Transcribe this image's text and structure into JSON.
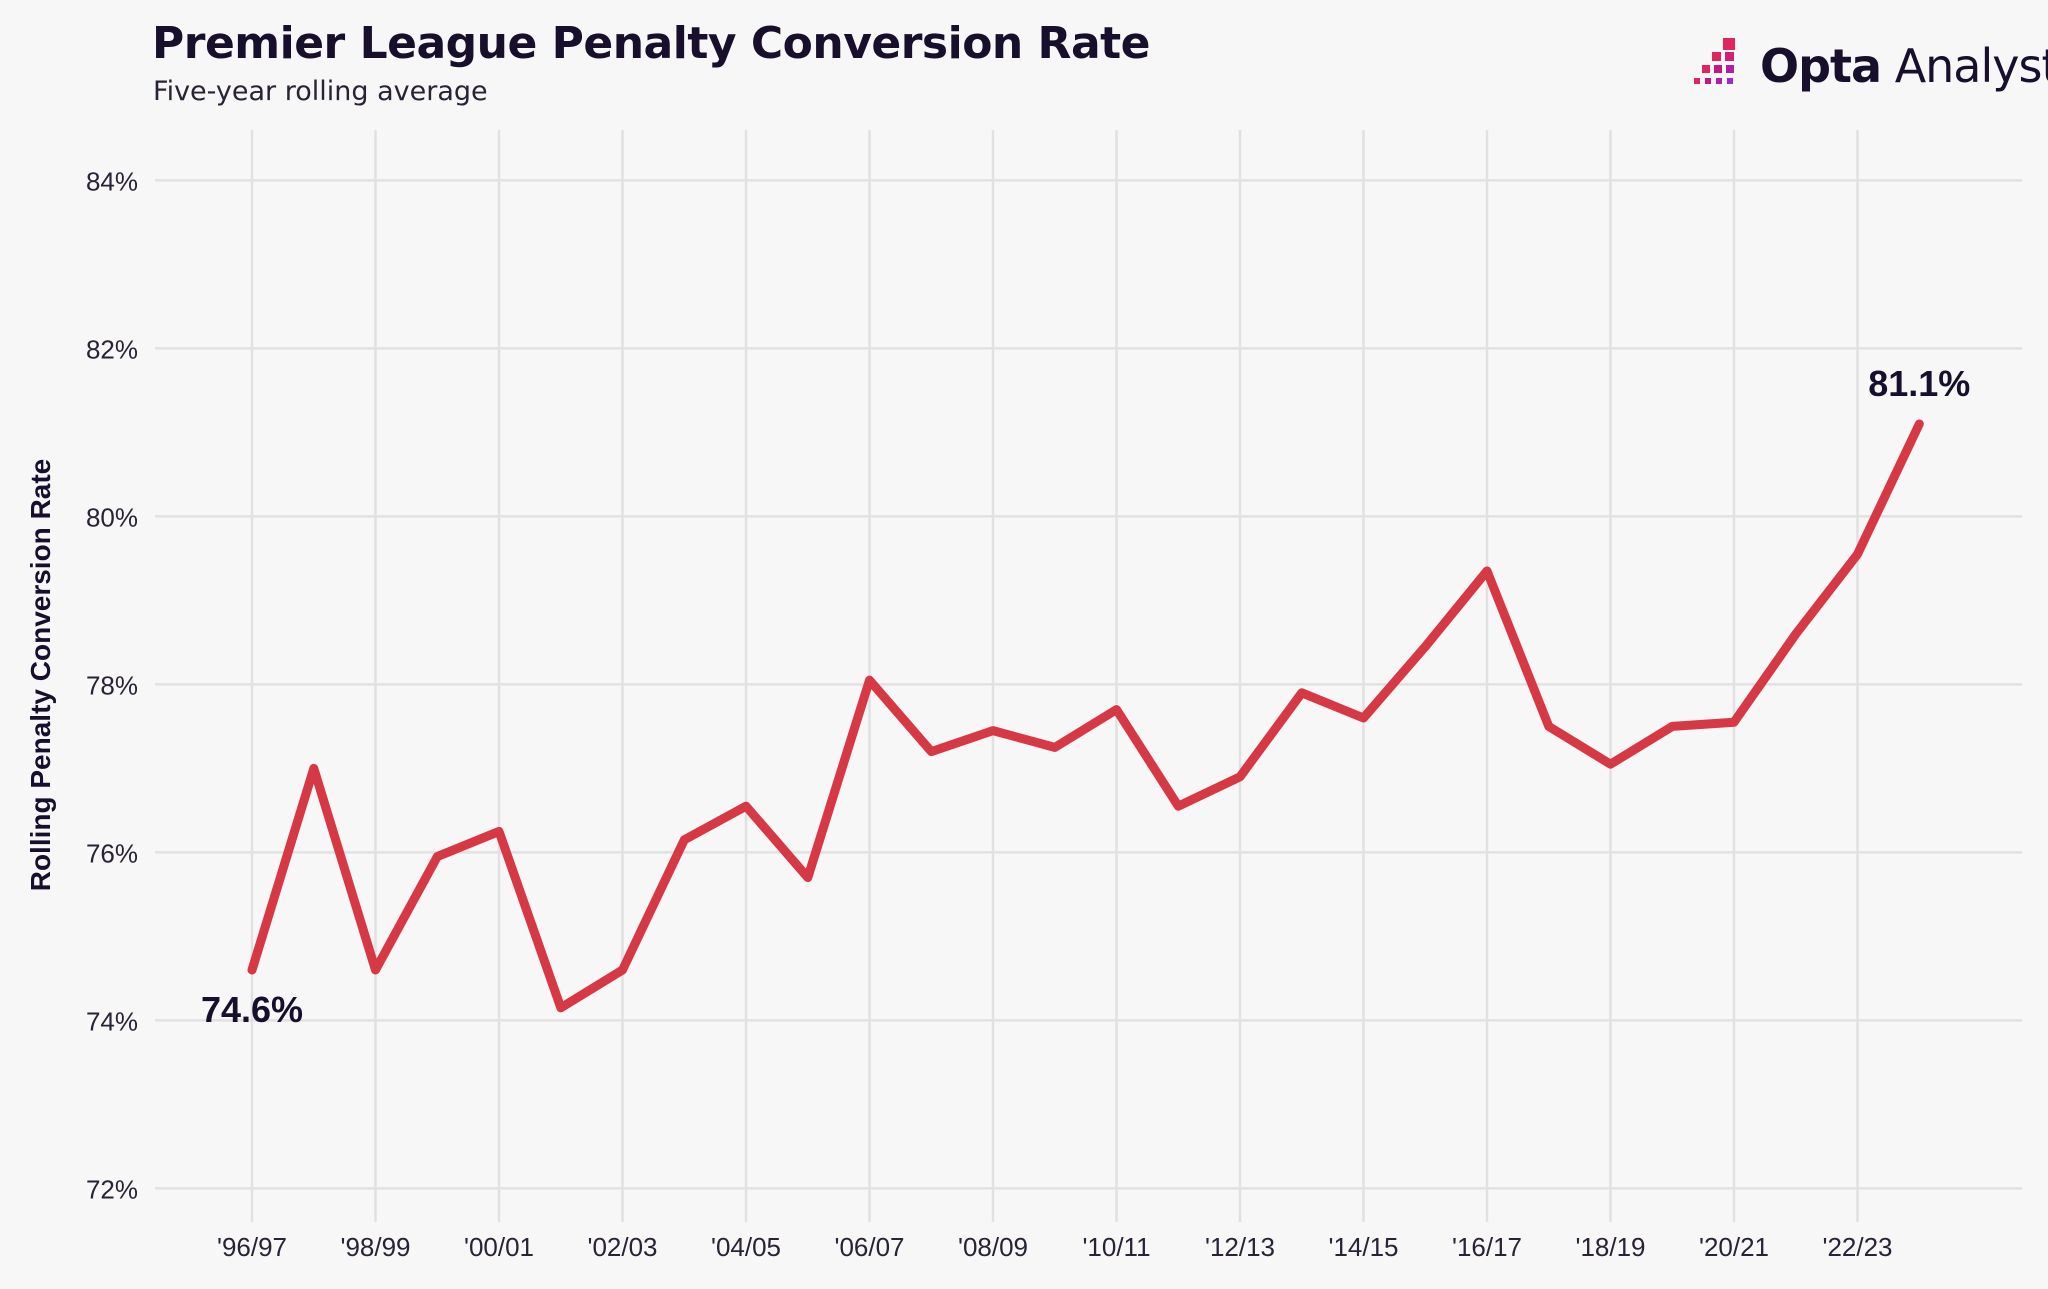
{
  "header": {
    "title": "Premier League Penalty Conversion Rate",
    "subtitle": "Five-year rolling average"
  },
  "brand": {
    "name_strong": "Opta",
    "name_light": "Analyst",
    "logo_colors": [
      "#e0245e",
      "#c2178a",
      "#9b2bd1"
    ]
  },
  "colors": {
    "line": "#d63844",
    "grid": "#e1e1e3",
    "text": "#170f2b"
  },
  "chart_data": {
    "type": "line",
    "title": "Premier League Penalty Conversion Rate",
    "subtitle": "Five-year rolling average",
    "xlabel": "",
    "ylabel": "Rolling Penalty Conversion Rate",
    "ylim": [
      71.6,
      84.6
    ],
    "yticks": [
      72,
      74,
      76,
      78,
      80,
      82,
      84
    ],
    "ytick_labels": [
      "72%",
      "74%",
      "76%",
      "78%",
      "80%",
      "82%",
      "84%"
    ],
    "xticks": [
      "'96/97",
      "'98/99",
      "'00/01",
      "'02/03",
      "'04/05",
      "'06/07",
      "'08/09",
      "'10/11",
      "'12/13",
      "'14/15",
      "'16/17",
      "'18/19",
      "'20/21",
      "'22/23"
    ],
    "grid": true,
    "legend": "none",
    "series": [
      {
        "name": "Rolling penalty conversion rate",
        "x": [
          "'96/97",
          "'97/98",
          "'98/99",
          "'99/00",
          "'00/01",
          "'01/02",
          "'02/03",
          "'03/04",
          "'04/05",
          "'05/06",
          "'06/07",
          "'07/08",
          "'08/09",
          "'09/10",
          "'10/11",
          "'11/12",
          "'12/13",
          "'13/14",
          "'14/15",
          "'15/16",
          "'16/17",
          "'17/18",
          "'18/19",
          "'19/20",
          "'20/21",
          "'21/22",
          "'22/23",
          "'23/24"
        ],
        "values": [
          74.6,
          77.0,
          74.6,
          75.95,
          76.25,
          74.15,
          74.6,
          76.15,
          76.55,
          75.7,
          78.05,
          77.2,
          77.45,
          77.25,
          77.7,
          76.55,
          76.9,
          77.9,
          77.6,
          78.45,
          79.35,
          77.5,
          77.05,
          77.5,
          77.55,
          78.6,
          79.55,
          81.1
        ]
      }
    ],
    "annotations": [
      {
        "label": "74.6%",
        "point_index": 0
      },
      {
        "label": "81.1%",
        "point_index": 27
      }
    ]
  }
}
